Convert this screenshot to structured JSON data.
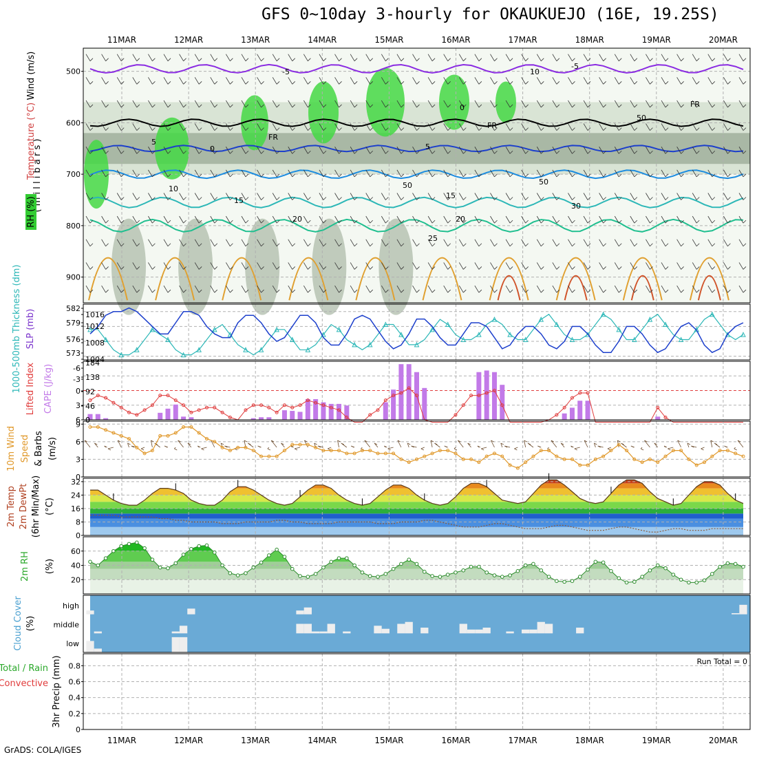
{
  "title": "GFS 0~10day 3-hourly for OKAUKUEJO (16E, 19.25S)",
  "footer": "GrADS: COLA/IGES",
  "colors": {
    "rh": "#33cc33",
    "temp": "#e0893a",
    "slp": "#1c3fcc",
    "thick": "#2cb7b7",
    "cape": "#c27ae8",
    "li": "#e03b3b",
    "wind": "#e0982a",
    "cloud": "#6aaad6",
    "cloud_clear": "#eeeeee"
  },
  "dates": [
    "11MAR",
    "12MAR",
    "13MAR",
    "14MAR",
    "15MAR",
    "16MAR",
    "17MAR",
    "18MAR",
    "19MAR",
    "20MAR"
  ],
  "run_total": "Run Total = 0",
  "chart_data": [
    {
      "type": "heatmap",
      "panel": "upper-air",
      "ylabel": "( m i l l i b a r s )",
      "legend": [
        "RH (%)",
        "Temperature (°C)",
        "Wind (m/s)"
      ],
      "yticks": [
        "500",
        "600",
        "700",
        "800",
        "900"
      ],
      "ylim": [
        950,
        455
      ],
      "contour_labels": [
        "-5",
        "-5",
        "0",
        "0",
        "5",
        "5",
        "10",
        "15",
        "15",
        "20",
        "20",
        "25",
        "FR",
        "FR",
        "FR",
        "10",
        "50",
        "50",
        "50",
        "30"
      ]
    },
    {
      "type": "line",
      "panel": "pressure",
      "ylabel_left": "1000-500mb Thickness (dm)",
      "ylabel_right": "SLP (mb)",
      "left_ticks": [
        "582",
        "579",
        "576",
        "573"
      ],
      "right_ticks": [
        "1016",
        "1012",
        "1008",
        "1004"
      ],
      "ylim_slp": [
        1003,
        1018
      ],
      "ylim_thick": [
        572,
        583
      ],
      "series": [
        {
          "name": "SLP (mb)",
          "values": [
            1010,
            1012,
            1015,
            1016,
            1016,
            1017,
            1016,
            1014,
            1012,
            1010,
            1010,
            1013,
            1016,
            1016,
            1015,
            1012,
            1010,
            1009,
            1009,
            1013,
            1015,
            1015,
            1013,
            1010,
            1008,
            1009,
            1012,
            1015,
            1015,
            1013,
            1009,
            1007,
            1007,
            1010,
            1014,
            1015,
            1014,
            1011,
            1008,
            1006,
            1007,
            1010,
            1014,
            1014,
            1012,
            1009,
            1007,
            1007,
            1010,
            1013,
            1013,
            1012,
            1009,
            1006,
            1007,
            1010,
            1012,
            1012,
            1010,
            1007,
            1006,
            1008,
            1012,
            1012,
            1010,
            1007,
            1005,
            1005,
            1008,
            1012,
            1012,
            1010,
            1007,
            1005,
            1006,
            1009,
            1012,
            1013,
            1011,
            1007,
            1005,
            1006,
            1010,
            1012,
            1013
          ]
        },
        {
          "name": "1000-500mb Thickness (dm)",
          "values": [
            578,
            578,
            576,
            574,
            573,
            573,
            574,
            576,
            578,
            577,
            576,
            574,
            573,
            573,
            574,
            576,
            578,
            579,
            577,
            575,
            574,
            573,
            574,
            576,
            578,
            578,
            576,
            574,
            574,
            575,
            577,
            579,
            578,
            576,
            575,
            574,
            575,
            577,
            579,
            579,
            577,
            575,
            575,
            576,
            578,
            580,
            579,
            577,
            576,
            576,
            577,
            579,
            580,
            579,
            577,
            576,
            576,
            578,
            580,
            581,
            579,
            577,
            576,
            576,
            577,
            579,
            581,
            580,
            578,
            576,
            576,
            578,
            580,
            581,
            579,
            577,
            576,
            576,
            578,
            580,
            581,
            579,
            577,
            576,
            577
          ]
        }
      ]
    },
    {
      "type": "bar",
      "panel": "stability",
      "ylabel_left": "Lifted Index",
      "ylabel_right": "CAPE (J/kg)",
      "left_ticks": [
        "-6",
        "-3",
        "0",
        "3",
        "6"
      ],
      "right_ticks": [
        "184",
        "138",
        "92",
        "46",
        "0"
      ],
      "ylim_cape": [
        0,
        184
      ],
      "ylim_li": [
        6,
        -6
      ],
      "series": [
        {
          "name": "CAPE (J/kg)",
          "values": [
            18,
            18,
            5,
            0,
            0,
            0,
            0,
            0,
            0,
            22,
            35,
            48,
            10,
            8,
            0,
            0,
            0,
            0,
            0,
            0,
            0,
            5,
            8,
            8,
            0,
            30,
            28,
            25,
            65,
            65,
            55,
            50,
            50,
            45,
            0,
            0,
            0,
            0,
            55,
            95,
            175,
            175,
            150,
            100,
            0,
            0,
            0,
            0,
            0,
            0,
            150,
            155,
            150,
            110,
            0,
            0,
            0,
            0,
            0,
            0,
            0,
            20,
            38,
            60,
            60,
            0,
            0,
            0,
            0,
            0,
            0,
            0,
            0,
            10,
            0,
            0,
            0,
            0,
            0,
            0,
            0,
            0,
            0,
            0,
            0
          ]
        },
        {
          "name": "Lifted Index",
          "values": [
            2,
            1,
            1.5,
            2.5,
            3.5,
            4.5,
            5,
            4,
            3,
            1,
            1,
            2,
            3,
            4.5,
            4,
            3.5,
            3.5,
            4.5,
            5.5,
            6,
            4,
            3,
            3,
            3.5,
            4.5,
            3,
            3.5,
            3,
            2,
            2.5,
            3,
            3.5,
            4,
            5.5,
            6.5,
            6.5,
            5,
            4,
            2,
            1,
            0.5,
            -0.5,
            1,
            6,
            7,
            7,
            7,
            5,
            3,
            1,
            1,
            0.5,
            0,
            3,
            7,
            7,
            7,
            7,
            7,
            6,
            5,
            3.5,
            1.5,
            0.5,
            0.5,
            7,
            7,
            7,
            7,
            7,
            7,
            7,
            7,
            3.5,
            5.5,
            7,
            7,
            7,
            7,
            7,
            7,
            7,
            7,
            7,
            7
          ]
        }
      ]
    },
    {
      "type": "line",
      "panel": "wind",
      "ylabel": "10m Wind Speed & Barbs (m/s)",
      "yticks": [
        "9",
        "6",
        "3",
        "0"
      ],
      "ylim": [
        0,
        9.5
      ],
      "series": [
        {
          "name": "10m Wind Speed",
          "values": [
            8.5,
            8.5,
            8,
            7.5,
            7,
            6.5,
            5,
            4,
            4.5,
            7,
            7,
            7.5,
            8.5,
            8.5,
            7.5,
            6.5,
            6,
            5,
            4.5,
            5,
            5,
            4.5,
            3.5,
            3.5,
            3.5,
            4.5,
            5.5,
            5.5,
            5.5,
            5,
            4.5,
            4.5,
            4.5,
            4,
            4,
            4.5,
            4.5,
            4,
            4,
            4,
            3,
            2.5,
            3,
            3.5,
            4,
            4.5,
            4.5,
            4,
            3,
            3,
            2.5,
            3.5,
            4,
            3.5,
            2,
            1.5,
            2.5,
            3.5,
            4.5,
            4.5,
            3.5,
            3,
            3,
            2,
            2,
            3,
            3.5,
            4.5,
            5.5,
            4.5,
            3,
            2.5,
            3,
            2.5,
            3.5,
            4.5,
            4.5,
            3,
            2,
            2.5,
            3.5,
            4.5,
            4.5,
            4,
            3.5
          ]
        }
      ]
    },
    {
      "type": "area",
      "panel": "temperature",
      "ylabel": "2m Temp 2m DewPt (6hr Min/Max) (°C)",
      "yticks": [
        "32",
        "24",
        "16",
        "8",
        "0"
      ],
      "ylim": [
        0,
        34
      ],
      "series": [
        {
          "name": "2m Temp",
          "values": [
            27,
            27,
            24,
            21,
            19,
            18,
            18,
            21,
            25,
            28,
            28,
            27,
            25,
            21,
            19,
            18,
            18,
            21,
            26,
            29,
            29,
            27,
            24,
            21,
            19,
            18,
            19,
            23,
            27,
            30,
            30,
            28,
            24,
            21,
            19,
            18,
            19,
            23,
            27,
            30,
            30,
            28,
            24,
            21,
            19,
            18,
            19,
            23,
            28,
            31,
            31,
            29,
            25,
            21,
            20,
            19,
            20,
            25,
            30,
            33,
            33,
            30,
            26,
            22,
            20,
            19,
            20,
            25,
            30,
            33,
            33,
            31,
            26,
            22,
            20,
            18,
            19,
            24,
            29,
            32,
            32,
            30,
            25,
            21,
            19
          ]
        },
        {
          "name": "2m DewPt",
          "values": [
            12,
            12,
            12,
            12,
            11,
            11,
            11,
            11,
            11,
            10,
            10,
            9,
            9,
            8,
            8,
            8,
            8,
            7,
            7,
            7,
            8,
            8,
            8,
            8,
            9,
            9,
            8,
            8,
            7,
            7,
            7,
            7,
            8,
            8,
            8,
            8,
            8,
            7,
            7,
            7,
            8,
            8,
            8,
            9,
            9,
            8,
            7,
            6,
            5,
            5,
            5,
            6,
            7,
            7,
            6,
            5,
            4,
            4,
            4,
            5,
            6,
            6,
            5,
            4,
            3,
            3,
            3,
            4,
            5,
            5,
            4,
            3,
            2,
            2,
            3,
            4,
            4,
            3,
            3,
            3,
            4,
            4,
            4,
            4,
            4
          ]
        }
      ]
    },
    {
      "type": "area",
      "panel": "humidity",
      "ylabel": "2m RH (%)",
      "yticks": [
        "60",
        "40",
        "20"
      ],
      "ylim": [
        0,
        80
      ],
      "series": [
        {
          "name": "2m RH",
          "values": [
            45,
            40,
            50,
            60,
            67,
            70,
            72,
            64,
            48,
            37,
            36,
            43,
            55,
            63,
            67,
            68,
            58,
            40,
            29,
            26,
            29,
            37,
            44,
            54,
            62,
            52,
            35,
            25,
            24,
            28,
            37,
            45,
            50,
            50,
            40,
            30,
            25,
            24,
            28,
            35,
            42,
            48,
            42,
            31,
            25,
            24,
            27,
            30,
            33,
            38,
            38,
            30,
            26,
            24,
            26,
            32,
            40,
            42,
            33,
            24,
            18,
            17,
            18,
            24,
            34,
            45,
            44,
            32,
            22,
            16,
            17,
            24,
            33,
            40,
            36,
            27,
            20,
            16,
            16,
            19,
            28,
            38,
            43,
            42,
            38
          ]
        }
      ]
    },
    {
      "type": "heatmap",
      "panel": "cloud",
      "ylabel": "Cloud Cover (%)",
      "rows": [
        "high",
        "middle",
        "low"
      ],
      "series": [
        {
          "name": "high",
          "values": [
            10,
            0,
            0,
            0,
            0,
            0,
            0,
            0,
            0,
            0,
            0,
            0,
            0,
            15,
            0,
            0,
            0,
            0,
            0,
            0,
            0,
            0,
            0,
            0,
            0,
            0,
            0,
            10,
            18,
            0,
            0,
            0,
            0,
            0,
            0,
            0,
            0,
            0,
            0,
            0,
            0,
            0,
            0,
            0,
            0,
            0,
            0,
            0,
            0,
            0,
            0,
            0,
            0,
            0,
            0,
            0,
            0,
            0,
            0,
            0,
            0,
            0,
            0,
            0,
            0,
            0,
            0,
            0,
            0,
            0,
            0,
            0,
            0,
            0,
            0,
            0,
            0,
            0,
            0,
            0,
            0,
            0,
            0,
            3,
            25
          ]
        },
        {
          "name": "middle",
          "values": [
            0,
            5,
            0,
            0,
            0,
            0,
            0,
            0,
            0,
            0,
            0,
            5,
            20,
            0,
            0,
            0,
            0,
            0,
            0,
            0,
            0,
            0,
            0,
            0,
            0,
            0,
            0,
            25,
            25,
            5,
            5,
            25,
            0,
            5,
            0,
            0,
            0,
            20,
            12,
            0,
            25,
            30,
            0,
            15,
            0,
            0,
            0,
            0,
            25,
            10,
            10,
            15,
            0,
            0,
            5,
            0,
            10,
            10,
            30,
            25,
            0,
            0,
            0,
            15,
            0,
            0,
            0,
            0,
            0,
            0,
            0,
            0,
            0,
            0,
            0,
            0,
            0,
            0,
            0,
            0,
            0,
            0,
            0,
            0,
            0
          ]
        },
        {
          "name": "low",
          "values": [
            30,
            10,
            0,
            0,
            0,
            0,
            0,
            0,
            0,
            0,
            0,
            40,
            40,
            0,
            0,
            0,
            0,
            0,
            0,
            0,
            0,
            0,
            0,
            0,
            0,
            0,
            0,
            0,
            0,
            0,
            0,
            0,
            0,
            0,
            0,
            0,
            0,
            0,
            0,
            0,
            0,
            0,
            0,
            0,
            0,
            0,
            0,
            0,
            0,
            0,
            0,
            0,
            0,
            0,
            0,
            0,
            0,
            0,
            0,
            0,
            0,
            0,
            0,
            0,
            0,
            0,
            0,
            0,
            0,
            0,
            0,
            0,
            0,
            0,
            0,
            0,
            0,
            0,
            0,
            0,
            0,
            0,
            0,
            0,
            0
          ]
        }
      ]
    },
    {
      "type": "bar",
      "panel": "precip",
      "ylabel_left": "Total / Rain",
      "ylabel_left2": "Convective",
      "ylabel": "3hr Precip (mm)",
      "yticks": [
        "0.8",
        "0.6",
        "0.4",
        "0.2",
        "0"
      ],
      "ylim": [
        0,
        0.95
      ],
      "series": [
        {
          "name": "3hr Precip",
          "values": []
        }
      ]
    }
  ]
}
